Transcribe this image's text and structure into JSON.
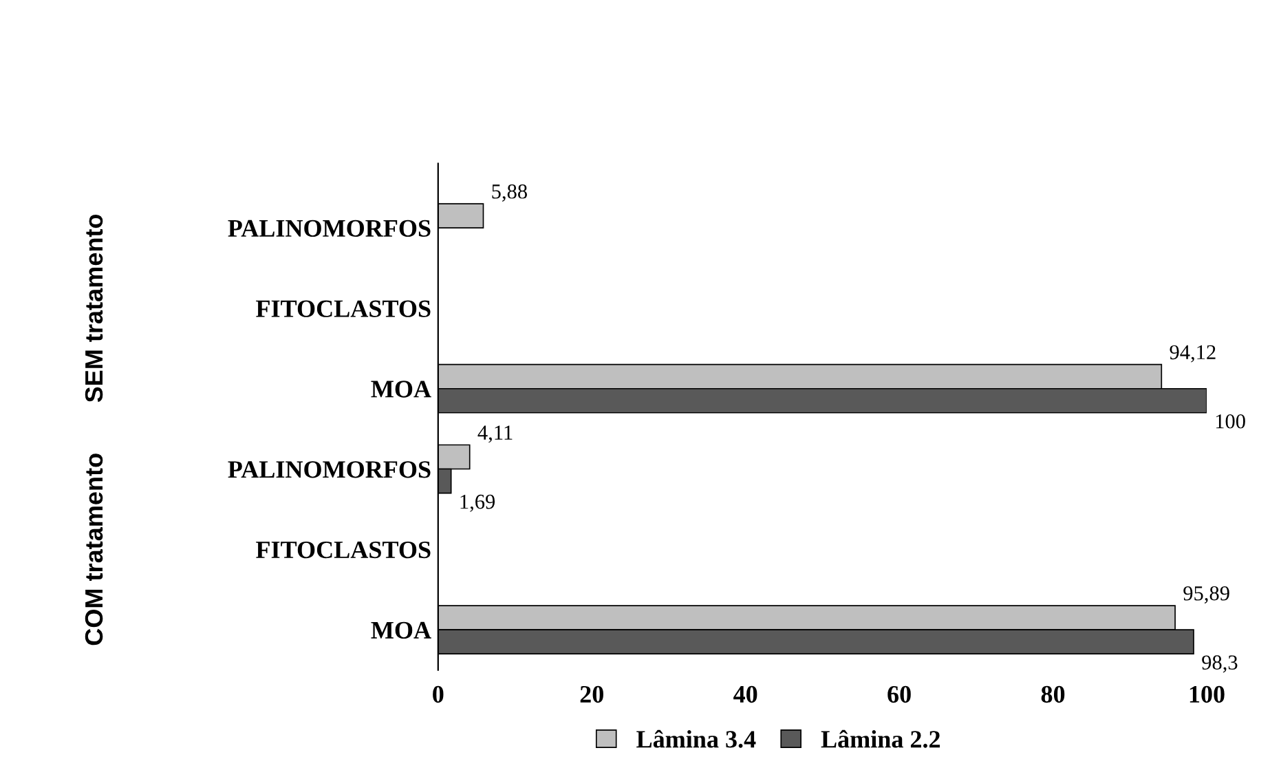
{
  "chart_data": {
    "type": "bar",
    "orientation": "horizontal",
    "categories": [
      "PALINOMORFOS",
      "FITOCLASTOS",
      "MOA",
      "PALINOMORFOS",
      "FITOCLASTOS",
      "MOA"
    ],
    "series": [
      {
        "name": "Lâmina 3.4",
        "color": "#bfbfbf",
        "values": [
          5.88,
          null,
          94.12,
          4.11,
          null,
          95.89
        ],
        "value_labels": [
          "5,88",
          null,
          "94,12",
          "4,11",
          null,
          "95,89"
        ]
      },
      {
        "name": "Lâmina 2.2",
        "color": "#595959",
        "values": [
          null,
          null,
          100,
          1.69,
          null,
          98.3
        ],
        "value_labels": [
          null,
          null,
          "100",
          "1,69",
          null,
          "98,3"
        ]
      }
    ],
    "annotations": [
      "SEM tratamento",
      "COM tratamento"
    ],
    "xlim": [
      0,
      100
    ],
    "xticks": [
      0,
      20,
      40,
      60,
      80,
      100
    ],
    "grid": false,
    "legend": "bottom"
  }
}
